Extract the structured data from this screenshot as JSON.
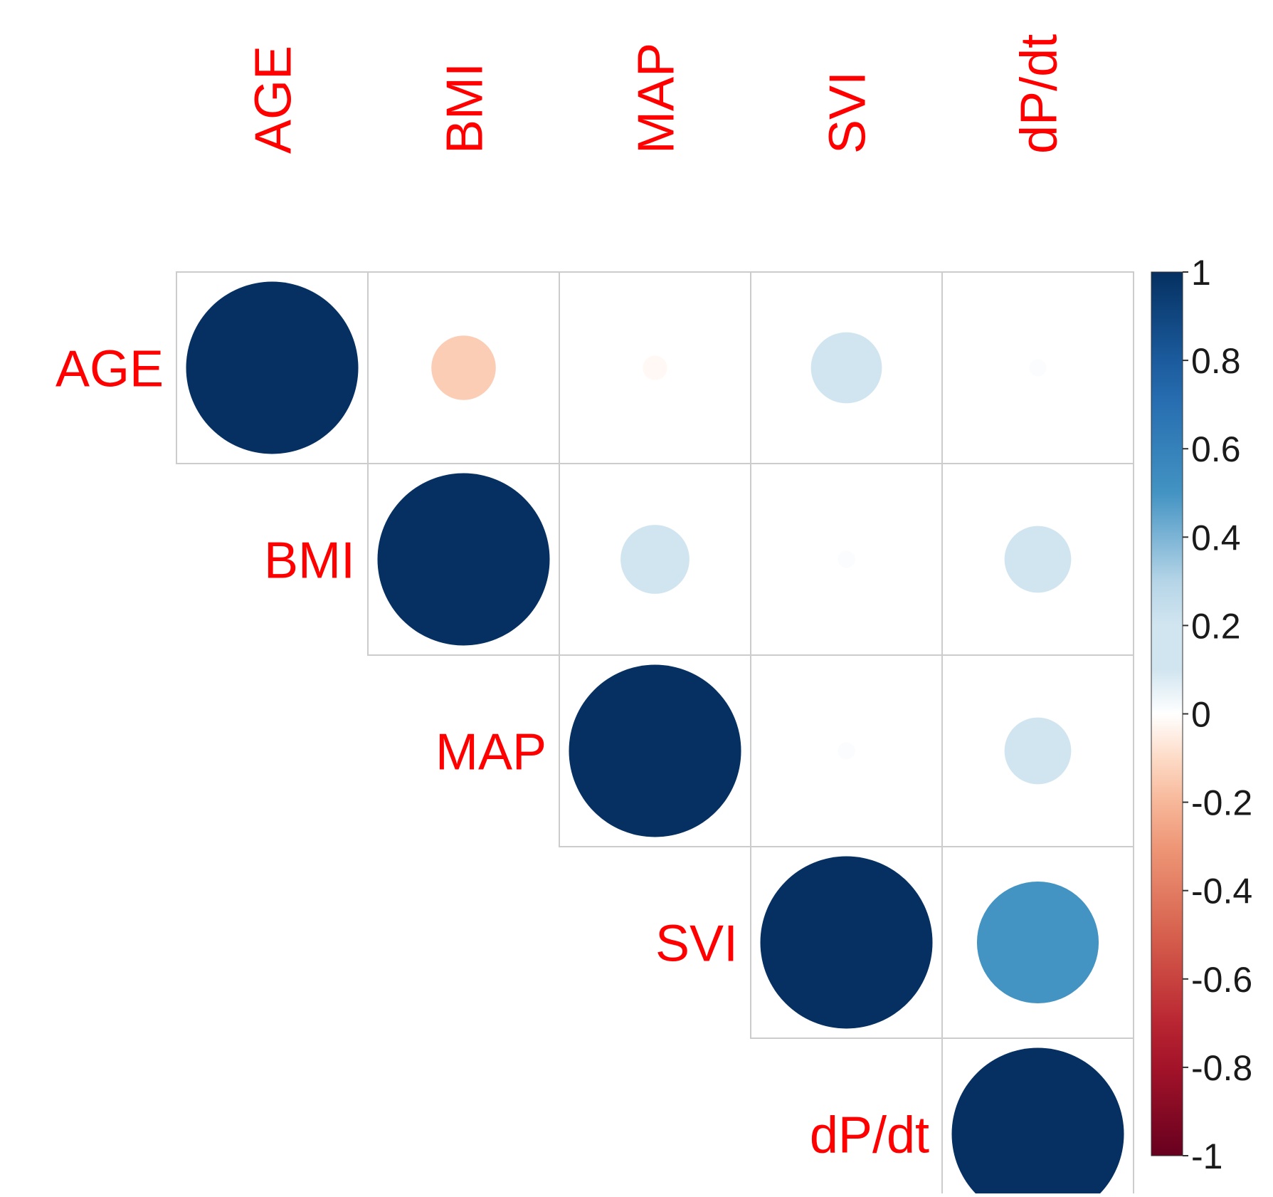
{
  "chart_data": {
    "type": "heatmap",
    "variables": [
      "AGE",
      "BMI",
      "MAP",
      "SVI",
      "dP/dt"
    ],
    "matrix_layout": "upper-triangle",
    "cells": [
      {
        "row": "AGE",
        "col": "AGE",
        "value": 1.0
      },
      {
        "row": "AGE",
        "col": "BMI",
        "value": -0.14
      },
      {
        "row": "AGE",
        "col": "MAP",
        "value": -0.02
      },
      {
        "row": "AGE",
        "col": "SVI",
        "value": 0.17
      },
      {
        "row": "AGE",
        "col": "dP/dt",
        "value": 0.01
      },
      {
        "row": "BMI",
        "col": "BMI",
        "value": 1.0
      },
      {
        "row": "BMI",
        "col": "MAP",
        "value": 0.16
      },
      {
        "row": "BMI",
        "col": "SVI",
        "value": 0.01
      },
      {
        "row": "BMI",
        "col": "dP/dt",
        "value": 0.15
      },
      {
        "row": "MAP",
        "col": "MAP",
        "value": 1.0
      },
      {
        "row": "MAP",
        "col": "SVI",
        "value": 0.01
      },
      {
        "row": "MAP",
        "col": "dP/dt",
        "value": 0.15
      },
      {
        "row": "SVI",
        "col": "SVI",
        "value": 1.0
      },
      {
        "row": "SVI",
        "col": "dP/dt",
        "value": 0.5
      },
      {
        "row": "dP/dt",
        "col": "dP/dt",
        "value": 1.0
      }
    ],
    "colorbar": {
      "range": [
        -1,
        1
      ],
      "tick_labels": [
        "1",
        "0.8",
        "0.6",
        "0.4",
        "0.2",
        "0",
        "-0.2",
        "-0.4",
        "-0.6",
        "-0.8",
        "-1"
      ],
      "placement": "right"
    },
    "colors": {
      "positive_strong": "#053061",
      "positive_mid": "#4393c3",
      "neutral": "#ffffff",
      "negative_mid": "#d6604d",
      "negative_strong": "#67001f",
      "label_color": "#ff0000",
      "grid_color": "#cccccc"
    },
    "title": "",
    "xlabel": "",
    "ylabel": ""
  }
}
